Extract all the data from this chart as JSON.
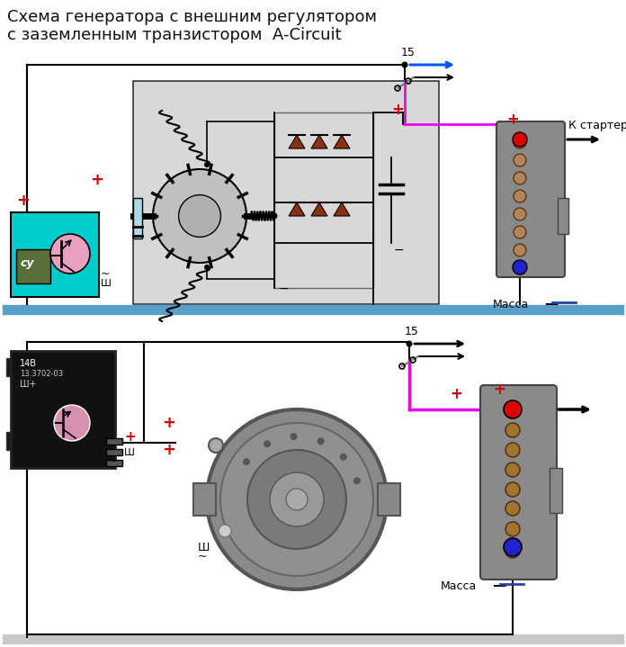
{
  "title_line1": "Схема генератора с внешним регулятором",
  "title_line2": "с заземленным транзистором  A-Circuit",
  "title_fontsize": 13,
  "bg_color": "#ffffff",
  "fig_width": 6.96,
  "fig_height": 7.19,
  "ground_label": "Масса",
  "starter_label": "К стартеру",
  "label_15": "15",
  "wire_pink": "#ee00ee",
  "wire_blue": "#0055ff",
  "wire_black": "#000000",
  "ground_bar_top": "#7ab4d0",
  "ground_bar_bot": "#c8c8c8",
  "plus_color": "#cc0000",
  "diode_color": "#8B3010",
  "reg_cyan": "#00cccc",
  "reg_su_color": "#5a6e3a",
  "trans_pink": "#e8a0c0",
  "brush_blue": "#add8e6",
  "bat_gray": "#8a8a8a",
  "bat_brown": "#a0522d",
  "bat_red_dot": "#dd0000",
  "bat_blue_dot": "#2222cc"
}
